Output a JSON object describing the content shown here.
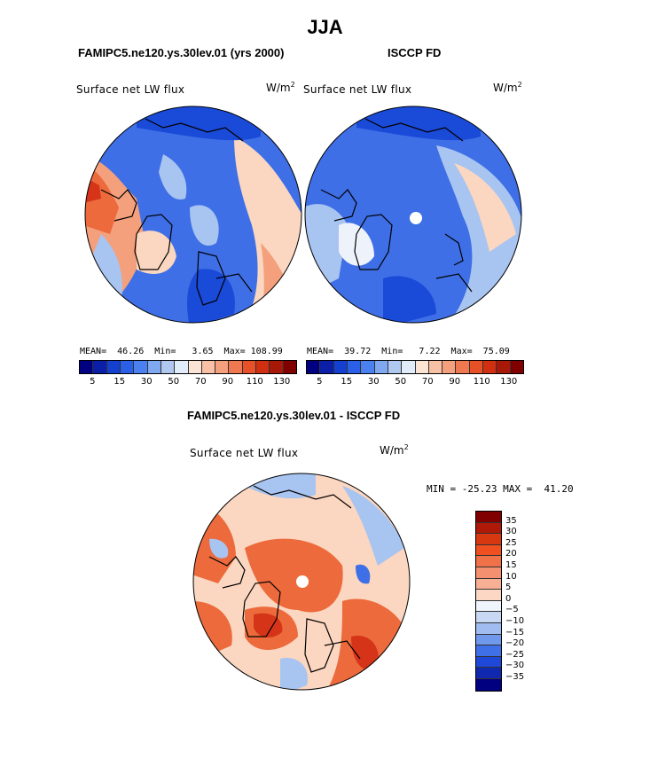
{
  "title": "JJA",
  "panels": {
    "left": {
      "header": "FAMIPC5.ne120.ys.30lev.01 (yrs 2000)",
      "variable": "Surface net LW flux",
      "units_base": "W/m",
      "units_exp": "2",
      "stats": "MEAN=  46.26  Min=   3.65  Max= 108.99"
    },
    "right": {
      "header": "ISCCP FD",
      "variable": "Surface net LW flux",
      "units_base": "W/m",
      "units_exp": "2",
      "stats": "MEAN=  39.72  Min=   7.22  Max=  75.09"
    },
    "bottom": {
      "header": "FAMIPC5.ne120.ys.30lev.01 - ISCCP FD",
      "variable": "Surface net LW flux",
      "units_base": "W/m",
      "units_exp": "2",
      "stats": "MIN = -25.23 MAX =  41.20"
    }
  },
  "colorbar_top": {
    "colors": [
      "#000080",
      "#0a1ea8",
      "#1440d0",
      "#2a60e8",
      "#4a80f0",
      "#80a8f0",
      "#b0c8f0",
      "#e0ecfa",
      "#fce4d4",
      "#f8c0a4",
      "#f4a07c",
      "#f07850",
      "#e85028",
      "#d03010",
      "#a81808",
      "#800000"
    ],
    "ticks": [
      "5",
      "15",
      "30",
      "50",
      "70",
      "90",
      "110",
      "130"
    ]
  },
  "colorbar_diff": {
    "colors": [
      "#800000",
      "#b01808",
      "#d83810",
      "#f05020",
      "#f07048",
      "#f49070",
      "#f8b094",
      "#fcd8c4",
      "#f0f4fc",
      "#c8d8f4",
      "#a0bcf0",
      "#7098ec",
      "#4070e8",
      "#2048d8",
      "#1028b0",
      "#000080"
    ],
    "ticks": [
      "35",
      "30",
      "25",
      "20",
      "15",
      "10",
      "5",
      "0",
      "−5",
      "−10",
      "−15",
      "−20",
      "−25",
      "−30",
      "−35"
    ]
  },
  "map_colors": {
    "deep_blue": "#1a4ad8",
    "mid_blue": "#3f6fe6",
    "light_blue": "#a8c4f0",
    "pale": "#eef3fb",
    "peach": "#fbd6c0",
    "salmon": "#f4a07c",
    "orange": "#ec6a3c",
    "red": "#d63418"
  }
}
